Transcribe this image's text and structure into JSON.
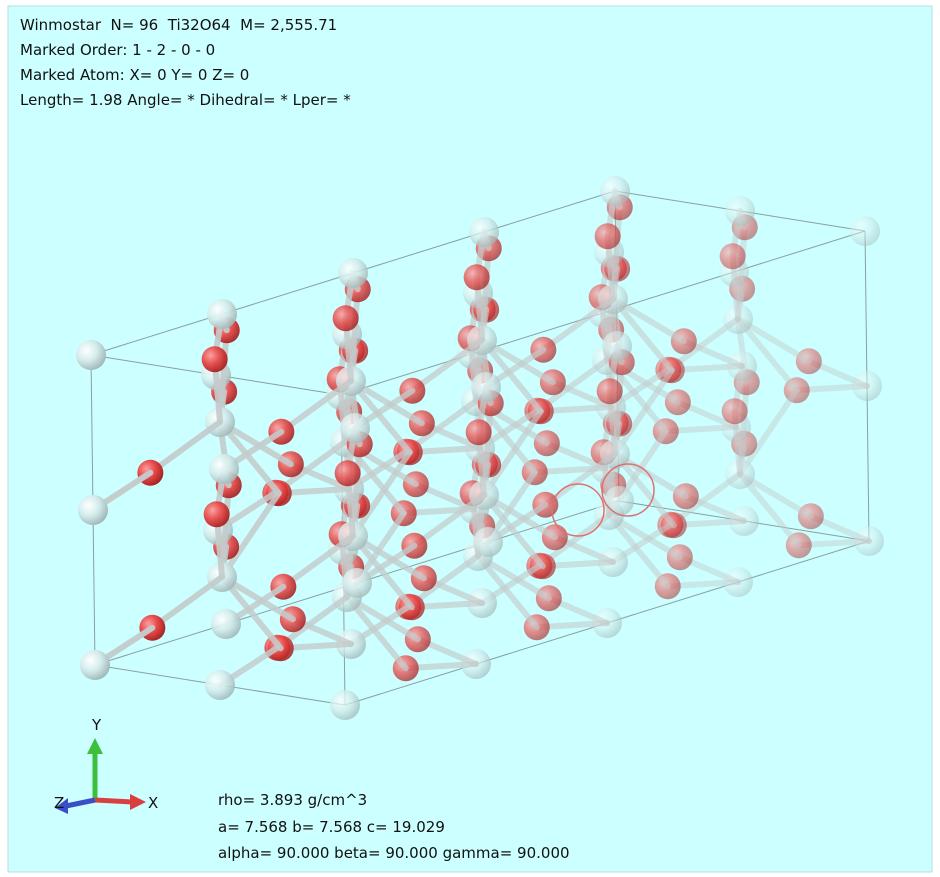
{
  "header": {
    "lines": [
      "Winmostar  N= 96  Ti32O64  M= 2,555.71",
      "Marked Order: 1 - 2 - 0 - 0",
      "Marked Atom: X= 0 Y= 0 Z= 0",
      "Length= 1.98 Angle= * Dihedral= * Lper= *"
    ]
  },
  "axes": {
    "y": "Y",
    "z": "Z",
    "x": "X"
  },
  "cell_info": {
    "lines": [
      "rho= 3.893 g/cm^3",
      "a= 7.568 b= 7.568 c= 19.029",
      "alpha= 90.000 beta= 90.000 gamma= 90.000"
    ]
  }
}
